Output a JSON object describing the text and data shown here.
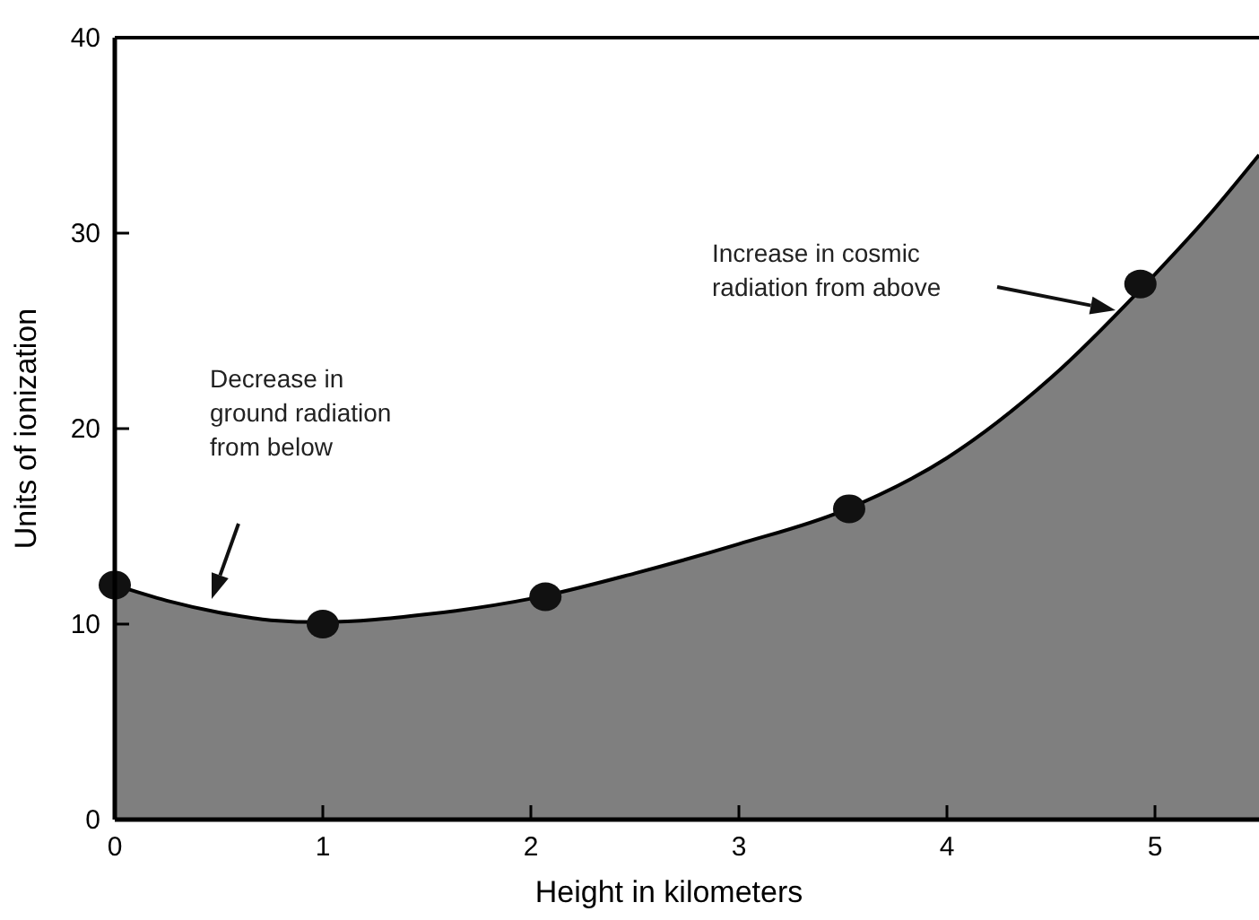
{
  "chart_data": {
    "type": "area",
    "xlabel": "Height in kilometers",
    "ylabel": "Units of ionization",
    "xlim": [
      0,
      5.5
    ],
    "ylim": [
      0,
      40
    ],
    "xticks": [
      0,
      1,
      2,
      3,
      4,
      5
    ],
    "yticks": [
      0,
      10,
      20,
      30,
      40
    ],
    "grid": false,
    "series": [
      {
        "color": "#7f7f7f",
        "x": [
          0,
          0.25,
          0.5,
          0.75,
          1,
          1.5,
          2,
          2.5,
          3,
          3.5,
          4,
          4.5,
          5,
          5.25,
          5.5
        ],
        "values": [
          12,
          11.2,
          10.6,
          10.2,
          10.1,
          10.5,
          11.3,
          12.6,
          14.1,
          15.8,
          18.5,
          22.6,
          27.9,
          30.8,
          34
        ]
      },
      {
        "type": "scatter",
        "color": "#111111",
        "marker": "circle",
        "x": [
          0,
          1,
          2.07,
          3.53,
          4.93
        ],
        "values": [
          12,
          10,
          11.4,
          15.9,
          27.4
        ]
      }
    ],
    "annotations": [
      "Decrease in\nground radiation\nfrom below",
      "Increase in cosmic\nradiation from above"
    ]
  }
}
